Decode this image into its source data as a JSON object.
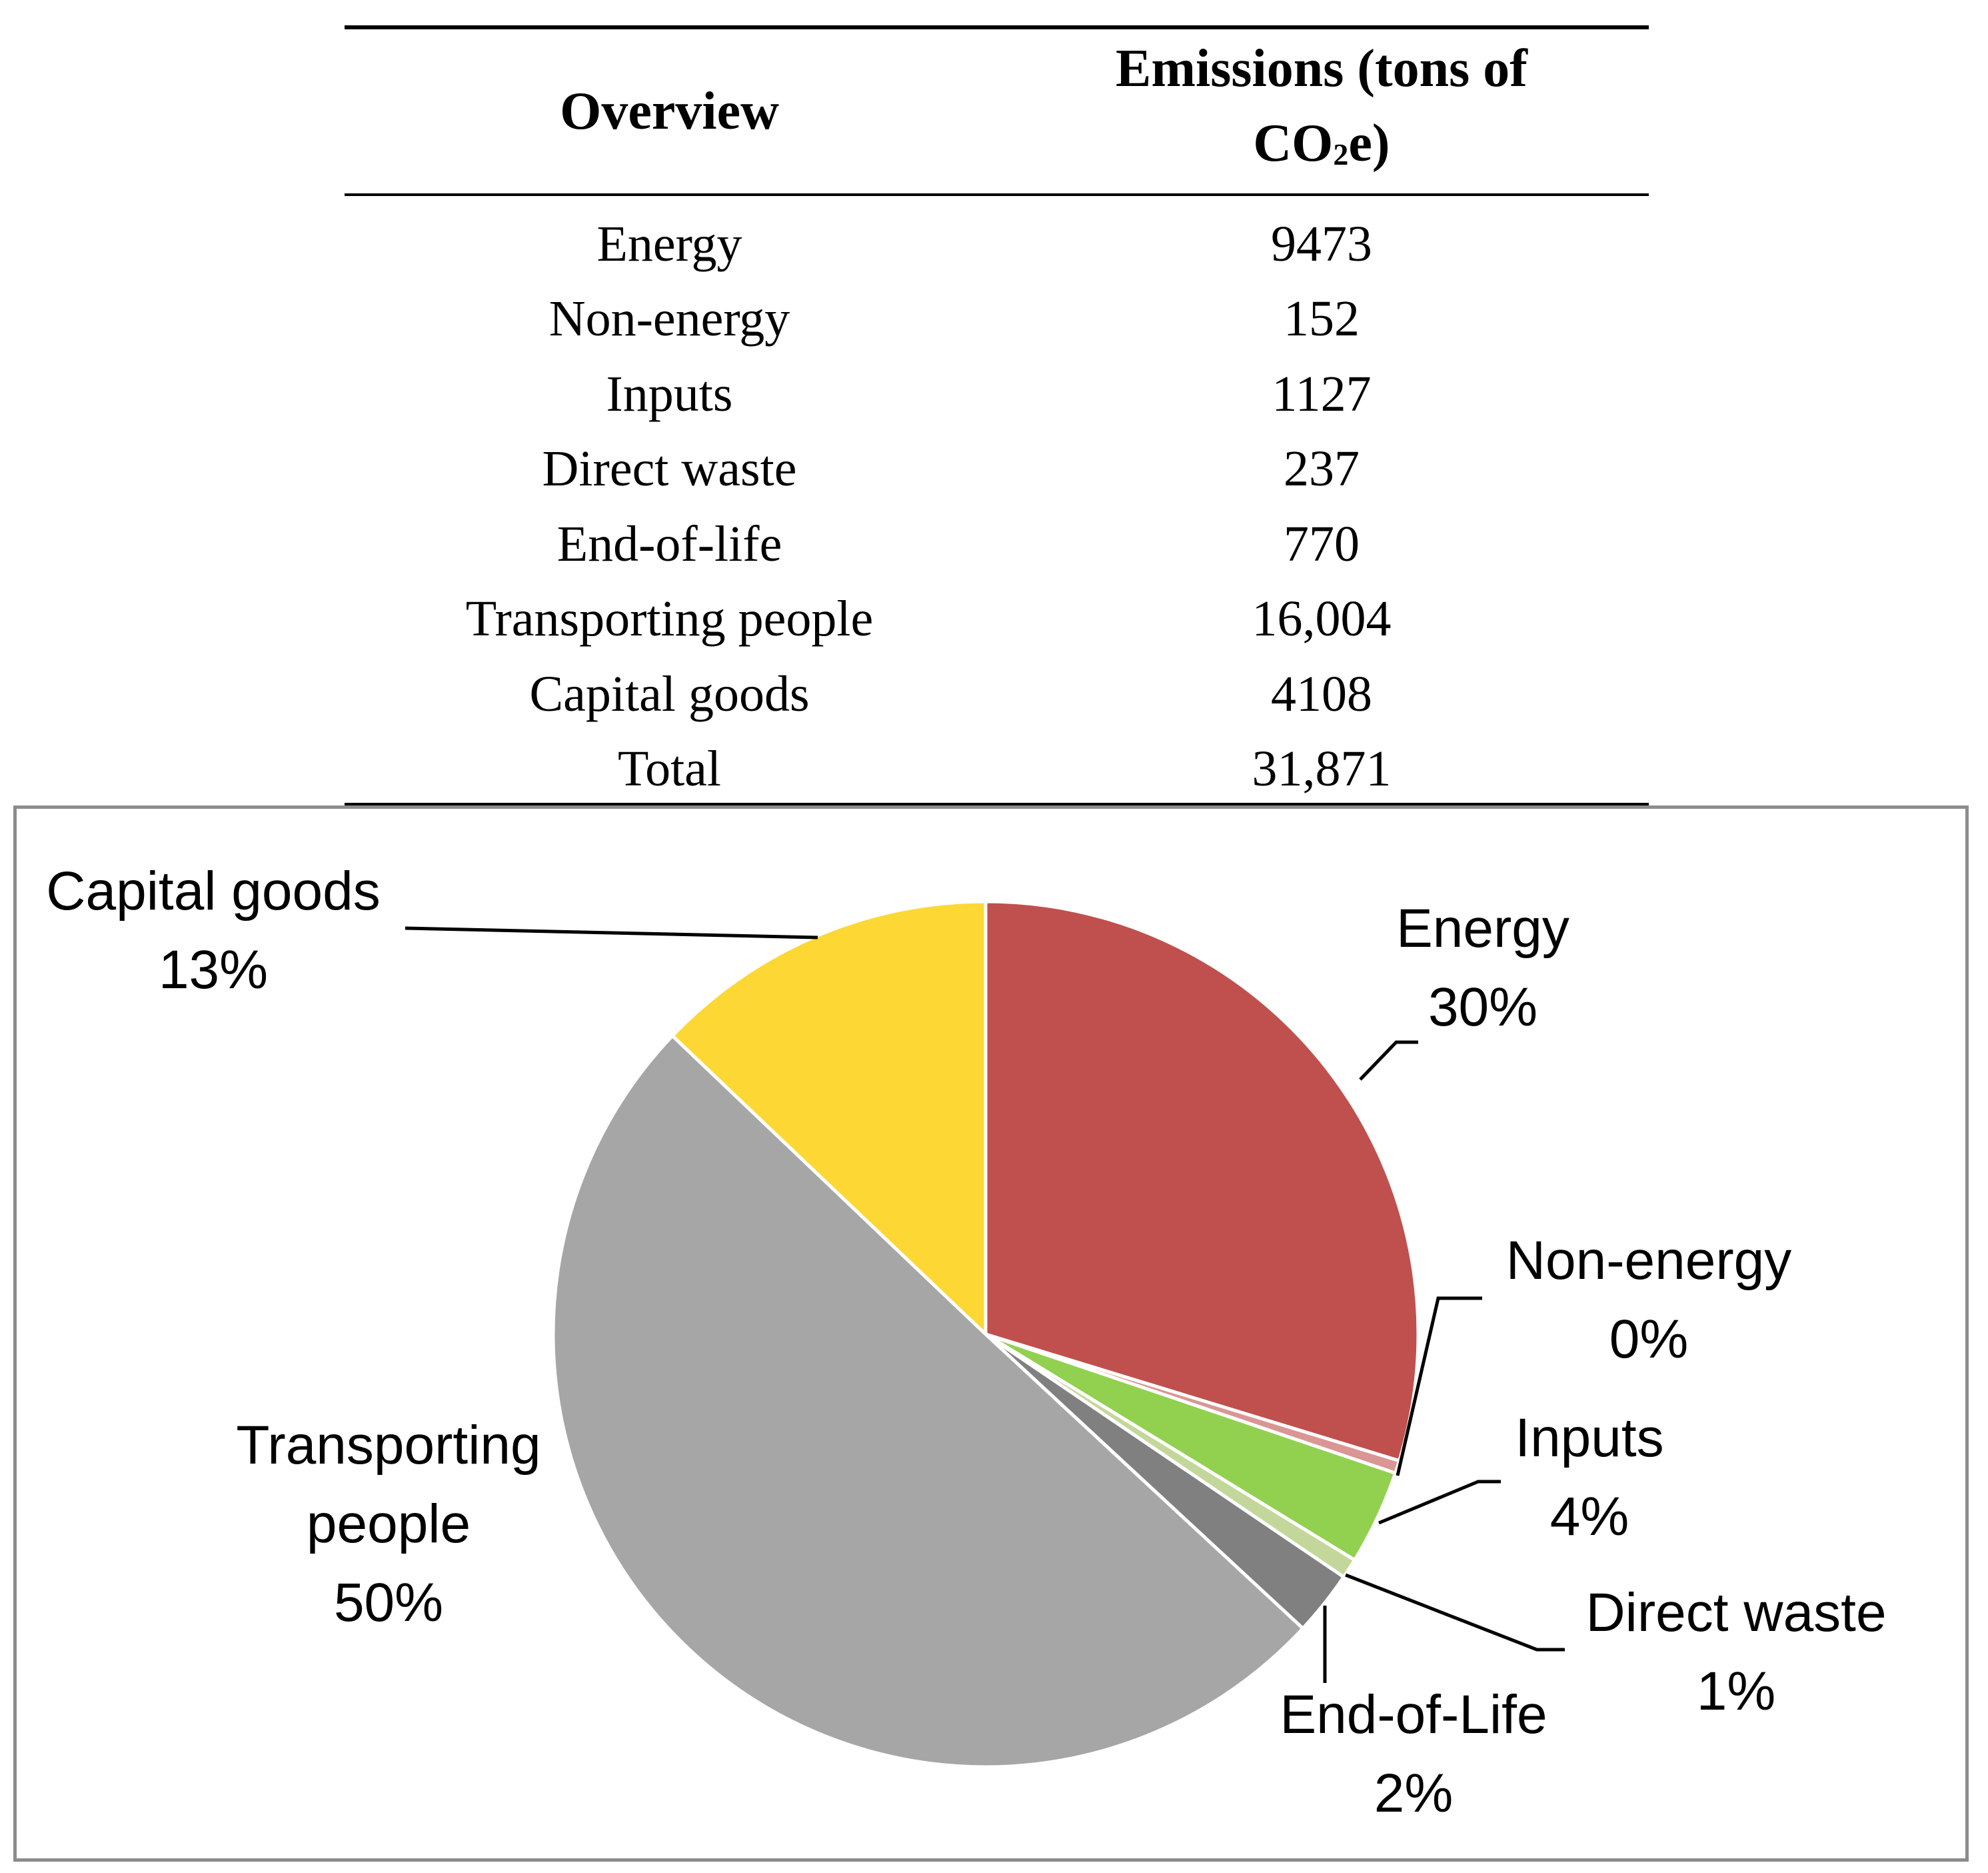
{
  "table": {
    "header": {
      "col1": "Overview",
      "col2_line1": "Emissions (tons of",
      "col2_line2_main": "CO",
      "col2_line2_sub": "2",
      "col2_line2_end": "e)"
    },
    "rows": [
      {
        "label": "Energy",
        "value": "9473"
      },
      {
        "label": "Non-energy",
        "value": "152"
      },
      {
        "label": "Inputs",
        "value": "1127"
      },
      {
        "label": "Direct waste",
        "value": "237"
      },
      {
        "label": "End-of-life",
        "value": "770"
      },
      {
        "label": "Transporting people",
        "value": "16,004"
      },
      {
        "label": "Capital goods",
        "value": "4108"
      },
      {
        "label": "Total",
        "value": "31,871"
      }
    ]
  },
  "chart_data": {
    "type": "pie",
    "start": "top",
    "direction": "clockwise",
    "slices": [
      {
        "name": "Energy",
        "value": 9473,
        "pct_label": "30%",
        "color": "#c0504d"
      },
      {
        "name": "Non-energy",
        "value": 152,
        "pct_label": "0%",
        "color": "#d99694"
      },
      {
        "name": "Inputs",
        "value": 1127,
        "pct_label": "4%",
        "color": "#92d050"
      },
      {
        "name": "Direct waste",
        "value": 237,
        "pct_label": "1%",
        "color": "#c4d79b"
      },
      {
        "name": "End-of-Life",
        "value": 770,
        "pct_label": "2%",
        "color": "#808080"
      },
      {
        "name": "Transporting people",
        "value": 16004,
        "pct_label": "50%",
        "color": "#a6a6a6"
      },
      {
        "name": "Capital goods",
        "value": 4108,
        "pct_label": "13%",
        "color": "#fdd835"
      }
    ],
    "data_labels": [
      {
        "lines": [
          "Energy",
          "30%"
        ]
      },
      {
        "lines": [
          "Non-energy",
          "0%"
        ]
      },
      {
        "lines": [
          "Inputs",
          "4%"
        ]
      },
      {
        "lines": [
          "Direct waste",
          "1%"
        ]
      },
      {
        "lines": [
          "End-of-Life",
          "2%"
        ]
      },
      {
        "lines": [
          "Transporting",
          "people",
          "50%"
        ]
      },
      {
        "lines": [
          "Capital goods",
          "13%"
        ]
      }
    ]
  }
}
